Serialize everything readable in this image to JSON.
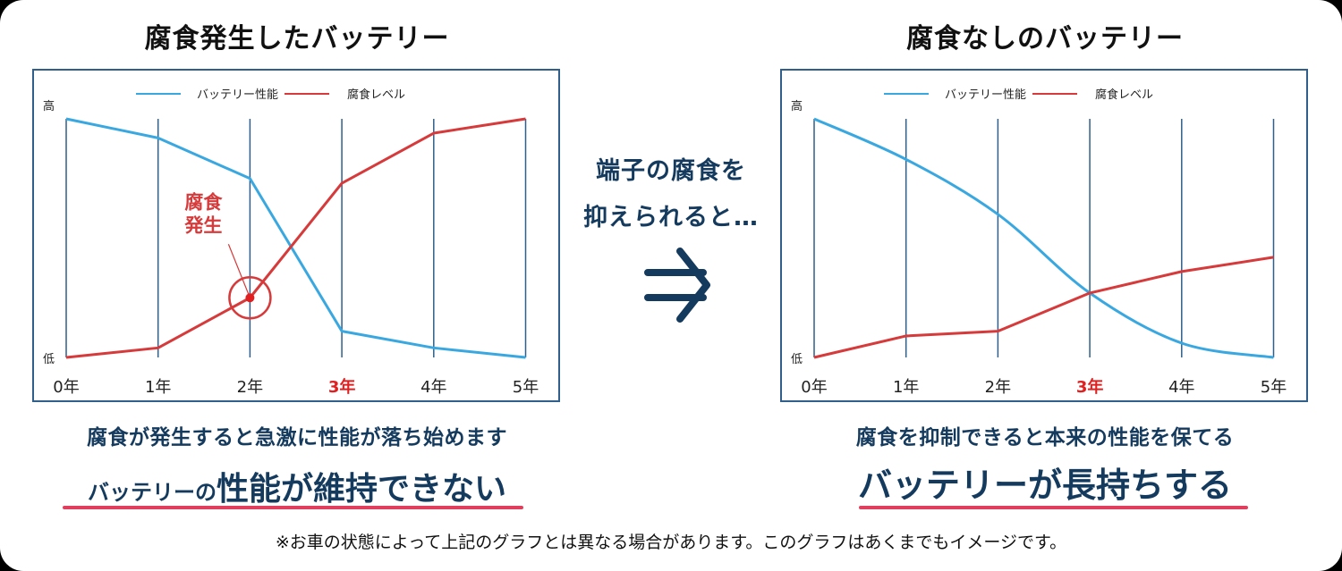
{
  "left_panel": {
    "title": "腐食発生したバッテリー",
    "caption": "腐食が発生すると急激に性能が落ち始めます",
    "headline_small": "バッテリーの",
    "headline_big": "性能が維持できない",
    "annotation_line1": "腐食",
    "annotation_line2": "発生"
  },
  "right_panel": {
    "title": "腐食なしのバッテリー",
    "caption": "腐食を抑制できると本来の性能を保てる",
    "headline_big": "バッテリーが長持ちする"
  },
  "middle": {
    "line1": "端子の腐食を",
    "line2": "抑えられると…",
    "arrow_icon": "double-right-arrow"
  },
  "legend": {
    "performance": "バッテリー性能",
    "corrosion": "腐食レベル"
  },
  "axis": {
    "high": "高",
    "low": "低",
    "x_ticks": [
      "0年",
      "1年",
      "2年",
      "3年",
      "4年",
      "5年"
    ],
    "highlight_tick_index": 3
  },
  "colors": {
    "performance": "#3aa8e0",
    "corrosion": "#d63a3a",
    "grid": "#2f5f8a",
    "text_navy": "#143a5e",
    "underline": "#e0405e",
    "highlight": "#e02020"
  },
  "footnote": "※お車の状態によって上記のグラフとは異なる場合があります。このグラフはあくまでもイメージです。",
  "chart_data": [
    {
      "type": "line",
      "title": "腐食発生したバッテリー",
      "xlabel": "",
      "ylabel": "",
      "categories": [
        "0年",
        "1年",
        "2年",
        "3年",
        "4年",
        "5年"
      ],
      "ylim": [
        0,
        100
      ],
      "y_tick_labels": {
        "top": "高",
        "bottom": "低"
      },
      "series": [
        {
          "name": "バッテリー性能",
          "color": "#3aa8e0",
          "values": [
            100,
            92,
            75,
            11,
            4,
            0
          ]
        },
        {
          "name": "腐食レベル",
          "color": "#d63a3a",
          "values": [
            0,
            4,
            25,
            73,
            94,
            100
          ]
        }
      ],
      "annotations": [
        {
          "text": "腐食発生",
          "x": "2年",
          "series": "腐食レベル",
          "value": 25
        }
      ],
      "grid": "vertical",
      "legend_position": "top"
    },
    {
      "type": "line",
      "title": "腐食なしのバッテリー",
      "xlabel": "",
      "ylabel": "",
      "categories": [
        "0年",
        "1年",
        "2年",
        "3年",
        "4年",
        "5年"
      ],
      "ylim": [
        0,
        100
      ],
      "y_tick_labels": {
        "top": "高",
        "bottom": "低"
      },
      "series": [
        {
          "name": "バッテリー性能",
          "color": "#3aa8e0",
          "values": [
            100,
            83,
            60,
            27,
            6,
            0
          ],
          "smooth": true
        },
        {
          "name": "腐食レベル",
          "color": "#d63a3a",
          "values": [
            0,
            9,
            11,
            27,
            36,
            42
          ]
        }
      ],
      "grid": "vertical",
      "legend_position": "top"
    }
  ]
}
